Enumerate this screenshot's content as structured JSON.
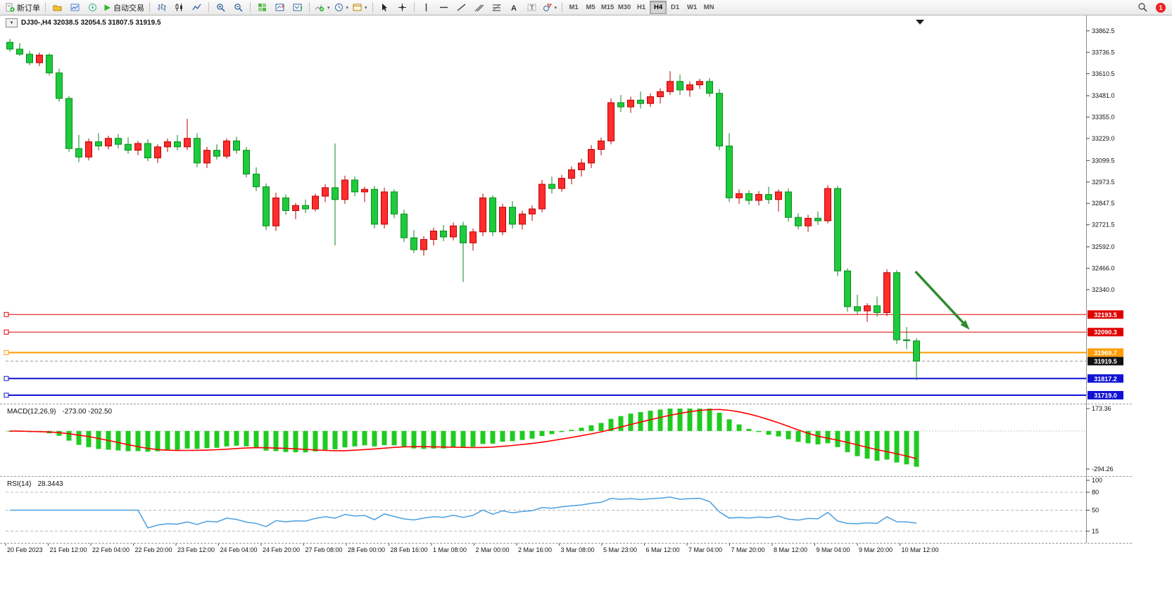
{
  "toolbar": {
    "new_order_label": "新订单",
    "autotrading_label": "自动交易",
    "timeframes": [
      "M1",
      "M5",
      "M15",
      "M30",
      "H1",
      "H4",
      "D1",
      "W1",
      "MN"
    ],
    "active_timeframe": "H4",
    "notification_count": "1"
  },
  "window": {
    "symbol_title": "DJ30-,H4  32038.5 32054.5 31807.5 31919.5",
    "symbol_toggle": "▼"
  },
  "indicators": {
    "macd": {
      "label": "MACD(12,26,9)",
      "values": "-273.00 -202.50",
      "axis_max": "173.36",
      "axis_min": "-294.26"
    },
    "rsi": {
      "label": "RSI(14)",
      "value": "28.3443",
      "axis_labels": [
        "100",
        "80",
        "50",
        "15"
      ],
      "level_values": [
        80,
        50,
        15
      ]
    }
  },
  "chart_data": {
    "type": "candlestick",
    "symbol": "DJ30-",
    "timeframe": "H4",
    "ohlc_display": {
      "open": "32038.5",
      "high": "32054.5",
      "low": "31807.5",
      "close": "31919.5"
    },
    "price_ticks": [
      "33862.5",
      "33736.5",
      "33610.5",
      "33481.0",
      "33355.0",
      "33229.0",
      "33099.5",
      "32973.5",
      "32847.5",
      "32721.5",
      "32592.0",
      "32466.0",
      "32340.0"
    ],
    "time_labels": [
      "20 Feb 2023",
      "21 Feb 12:00",
      "22 Feb 04:00",
      "22 Feb 20:00",
      "23 Feb 12:00",
      "24 Feb 04:00",
      "24 Feb 20:00",
      "27 Feb 08:00",
      "28 Feb 00:00",
      "28 Feb 16:00",
      "1 Mar 08:00",
      "2 Mar 00:00",
      "2 Mar 16:00",
      "3 Mar 08:00",
      "5 Mar 23:00",
      "6 Mar 12:00",
      "7 Mar 04:00",
      "7 Mar 20:00",
      "8 Mar 12:00",
      "9 Mar 04:00",
      "9 Mar 20:00",
      "10 Mar 12:00"
    ],
    "current_price": 31919.5,
    "levels": [
      {
        "price": 32193.5,
        "label": "32193.5",
        "color": "#e00000",
        "width": 1,
        "style": "solid"
      },
      {
        "price": 32090.3,
        "label": "32090.3",
        "color": "#e00000",
        "width": 1,
        "style": "solid"
      },
      {
        "price": 31969.7,
        "label": "31969.7",
        "color": "#ff9c00",
        "width": 2,
        "style": "solid"
      },
      {
        "price": 31919.5,
        "label": "31919.5",
        "color": "#9a9a9a",
        "width": 1,
        "style": "dashed",
        "badge": "#111111",
        "role": "current-price"
      },
      {
        "price": 31817.2,
        "label": "31817.2",
        "color": "#1212d6",
        "width": 2,
        "style": "solid"
      },
      {
        "price": 31719.0,
        "label": "31719.0",
        "color": "#1212d6",
        "width": 2,
        "style": "solid"
      }
    ],
    "colors": {
      "up": "#ff2d2d",
      "up_stroke": "#bb0000",
      "down": "#1ecb3c",
      "down_stroke": "#0b8a1d",
      "macd": "#1fcb1f",
      "signal": "#ff0000",
      "rsi": "#4a9fe0"
    },
    "candles": [
      [
        33795,
        33815,
        33740,
        33755
      ],
      [
        33755,
        33790,
        33715,
        33725
      ],
      [
        33725,
        33745,
        33660,
        33675
      ],
      [
        33675,
        33735,
        33655,
        33720
      ],
      [
        33720,
        33730,
        33600,
        33615
      ],
      [
        33615,
        33640,
        33445,
        33465
      ],
      [
        33465,
        33480,
        33150,
        33170
      ],
      [
        33170,
        33250,
        33090,
        33120
      ],
      [
        33120,
        33230,
        33100,
        33210
      ],
      [
        33210,
        33260,
        33160,
        33185
      ],
      [
        33185,
        33245,
        33165,
        33230
      ],
      [
        33230,
        33255,
        33170,
        33195
      ],
      [
        33195,
        33235,
        33140,
        33160
      ],
      [
        33160,
        33215,
        33130,
        33200
      ],
      [
        33200,
        33225,
        33095,
        33115
      ],
      [
        33115,
        33195,
        33085,
        33180
      ],
      [
        33180,
        33230,
        33150,
        33210
      ],
      [
        33210,
        33250,
        33160,
        33180
      ],
      [
        33180,
        33345,
        33160,
        33230
      ],
      [
        33230,
        33260,
        33060,
        33085
      ],
      [
        33085,
        33180,
        33055,
        33160
      ],
      [
        33160,
        33195,
        33105,
        33125
      ],
      [
        33125,
        33230,
        33110,
        33215
      ],
      [
        33215,
        33240,
        33140,
        33160
      ],
      [
        33160,
        33180,
        33000,
        33020
      ],
      [
        33020,
        33060,
        32920,
        32945
      ],
      [
        32945,
        32965,
        32690,
        32715
      ],
      [
        32715,
        32910,
        32685,
        32880
      ],
      [
        32880,
        32900,
        32780,
        32805
      ],
      [
        32805,
        32850,
        32755,
        32835
      ],
      [
        32835,
        32870,
        32790,
        32815
      ],
      [
        32815,
        32905,
        32800,
        32890
      ],
      [
        32890,
        32960,
        32855,
        32940
      ],
      [
        32940,
        33200,
        32600,
        32870
      ],
      [
        32870,
        33010,
        32845,
        32985
      ],
      [
        32985,
        33005,
        32890,
        32915
      ],
      [
        32915,
        32945,
        32855,
        32930
      ],
      [
        32930,
        32950,
        32700,
        32725
      ],
      [
        32725,
        32940,
        32700,
        32915
      ],
      [
        32915,
        32930,
        32760,
        32785
      ],
      [
        32785,
        32810,
        32620,
        32645
      ],
      [
        32645,
        32690,
        32555,
        32575
      ],
      [
        32575,
        32655,
        32540,
        32635
      ],
      [
        32635,
        32705,
        32600,
        32685
      ],
      [
        32685,
        32720,
        32625,
        32650
      ],
      [
        32650,
        32735,
        32630,
        32715
      ],
      [
        32715,
        32740,
        32385,
        32615
      ],
      [
        32615,
        32700,
        32570,
        32680
      ],
      [
        32680,
        32905,
        32655,
        32880
      ],
      [
        32880,
        32895,
        32655,
        32680
      ],
      [
        32680,
        32845,
        32660,
        32825
      ],
      [
        32825,
        32860,
        32700,
        32725
      ],
      [
        32725,
        32805,
        32695,
        32785
      ],
      [
        32785,
        32835,
        32745,
        32815
      ],
      [
        32815,
        32985,
        32795,
        32960
      ],
      [
        32960,
        33005,
        32905,
        32935
      ],
      [
        32935,
        33015,
        32915,
        32995
      ],
      [
        32995,
        33065,
        32960,
        33045
      ],
      [
        33045,
        33110,
        33005,
        33085
      ],
      [
        33085,
        33190,
        33055,
        33165
      ],
      [
        33165,
        33235,
        33130,
        33215
      ],
      [
        33215,
        33465,
        33195,
        33440
      ],
      [
        33440,
        33485,
        33385,
        33415
      ],
      [
        33415,
        33475,
        33380,
        33455
      ],
      [
        33455,
        33505,
        33405,
        33435
      ],
      [
        33435,
        33495,
        33415,
        33475
      ],
      [
        33475,
        33525,
        33435,
        33505
      ],
      [
        33505,
        33625,
        33485,
        33565
      ],
      [
        33565,
        33605,
        33485,
        33515
      ],
      [
        33515,
        33565,
        33475,
        33545
      ],
      [
        33545,
        33580,
        33520,
        33565
      ],
      [
        33565,
        33585,
        33475,
        33495
      ],
      [
        33495,
        33520,
        33160,
        33185
      ],
      [
        33185,
        33260,
        32855,
        32880
      ],
      [
        32880,
        32930,
        32845,
        32905
      ],
      [
        32905,
        32925,
        32840,
        32865
      ],
      [
        32865,
        32920,
        32835,
        32900
      ],
      [
        32900,
        32945,
        32845,
        32870
      ],
      [
        32870,
        32930,
        32800,
        32915
      ],
      [
        32915,
        32935,
        32740,
        32765
      ],
      [
        32765,
        32790,
        32695,
        32715
      ],
      [
        32715,
        32780,
        32680,
        32760
      ],
      [
        32760,
        32800,
        32720,
        32745
      ],
      [
        32745,
        32955,
        32730,
        32935
      ],
      [
        32935,
        32950,
        32420,
        32450
      ],
      [
        32450,
        32465,
        32210,
        32240
      ],
      [
        32240,
        32310,
        32195,
        32215
      ],
      [
        32215,
        32260,
        32150,
        32245
      ],
      [
        32245,
        32300,
        32180,
        32205
      ],
      [
        32205,
        32460,
        32185,
        32440
      ],
      [
        32440,
        32455,
        32020,
        32045
      ],
      [
        32045,
        32120,
        31990,
        32040
      ],
      [
        32038.5,
        32054.5,
        31807.5,
        31919.5
      ]
    ]
  },
  "annotations": {
    "arrow": {
      "from_bar": 91.9,
      "from_price": 32447,
      "to_bar": 97.4,
      "to_price": 32104,
      "color": "#2e8b2e"
    }
  }
}
